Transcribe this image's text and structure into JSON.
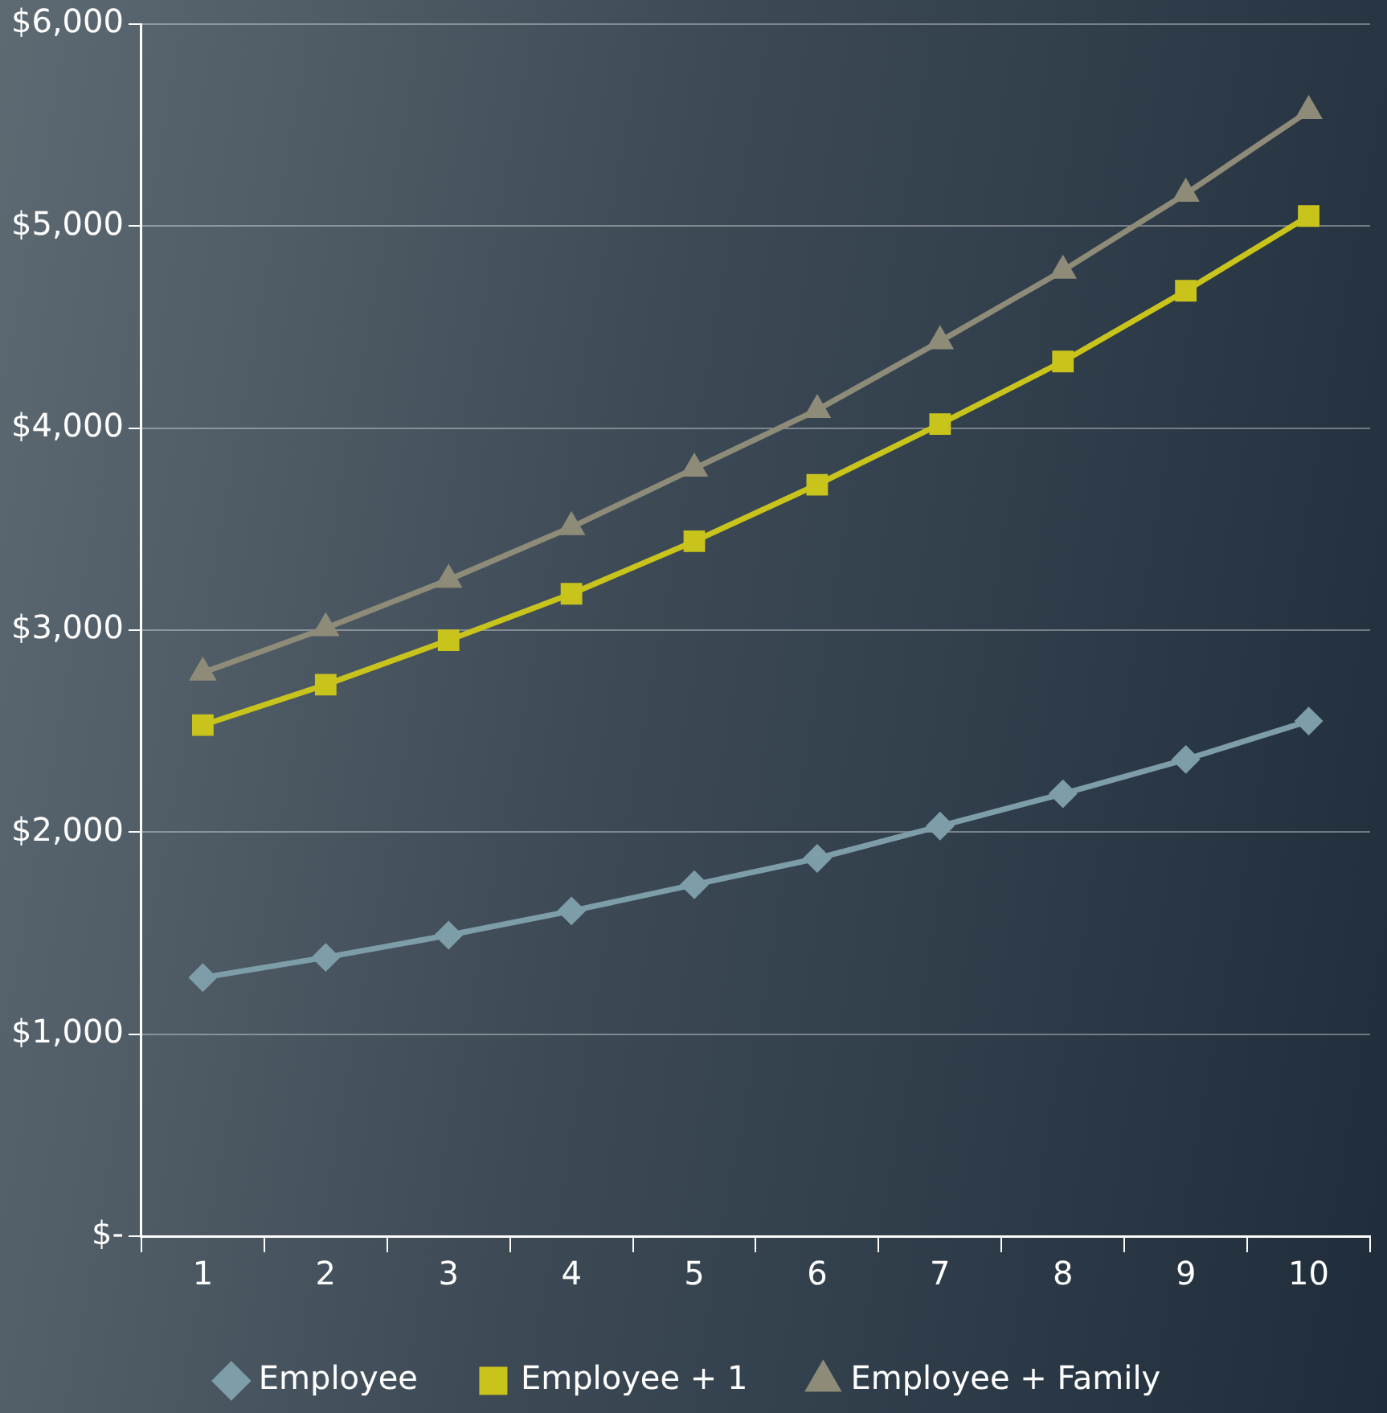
{
  "chart_data": {
    "type": "line",
    "categories": [
      "1",
      "2",
      "3",
      "4",
      "5",
      "6",
      "7",
      "8",
      "9",
      "10"
    ],
    "series": [
      {
        "name": "Employee",
        "color": "#7d9ea9",
        "marker": "diamond",
        "values": [
          1280,
          1380,
          1490,
          1610,
          1740,
          1870,
          2030,
          2190,
          2360,
          2550
        ]
      },
      {
        "name": "Employee + 1",
        "color": "#c9c41c",
        "marker": "square",
        "values": [
          2530,
          2730,
          2950,
          3180,
          3440,
          3720,
          4020,
          4330,
          4680,
          5050
        ]
      },
      {
        "name": "Employee + Family",
        "color": "#8e8b79",
        "marker": "triangle",
        "values": [
          2790,
          3010,
          3250,
          3510,
          3800,
          4090,
          4430,
          4780,
          5160,
          5570
        ]
      }
    ],
    "ylim": [
      0,
      6000
    ],
    "yticks": [
      {
        "value": 0,
        "label": "$-"
      },
      {
        "value": 1000,
        "label": "$1,000"
      },
      {
        "value": 2000,
        "label": "$2,000"
      },
      {
        "value": 3000,
        "label": "$3,000"
      },
      {
        "value": 4000,
        "label": "$4,000"
      },
      {
        "value": 5000,
        "label": "$5,000"
      },
      {
        "value": 6000,
        "label": "$6,000"
      }
    ],
    "grid": "y",
    "legend": "bottom",
    "line_style": "solid"
  }
}
